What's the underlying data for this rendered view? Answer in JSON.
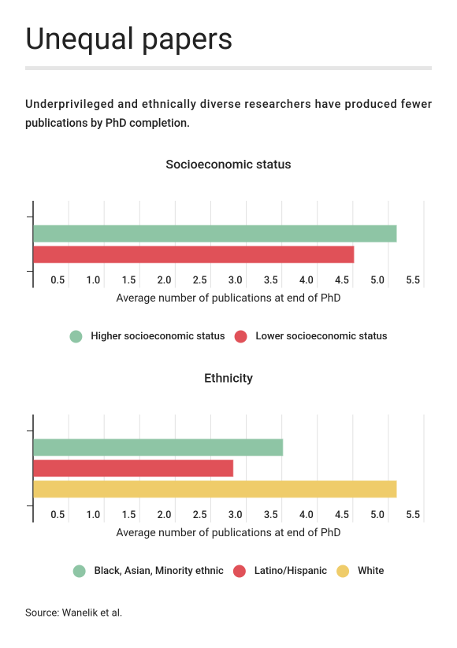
{
  "title": "Unequal papers",
  "description": [
    "Underprivileged and ethnically diverse researchers have produced fewer",
    "publications by PhD completion."
  ],
  "source": "Source: Wanelik et al.",
  "chart_data": [
    {
      "type": "bar",
      "title": "Socioeconomic status",
      "x_label": "Average number of publications at end of PhD",
      "xlim": [
        0,
        5.5
      ],
      "xticks": [
        0.5,
        {
          "value": 1,
          "label": "1.0"
        },
        1.5,
        {
          "value": 2,
          "label": "2.0"
        },
        2.5,
        {
          "value": 3,
          "label": "3.0"
        },
        3.5,
        {
          "value": 4,
          "label": "4.0"
        },
        4.5,
        {
          "value": 5,
          "label": "5.0"
        },
        5.5
      ],
      "grid": true,
      "series": [
        {
          "name": "Higher socioeconomic status",
          "color": "#8ec5a5",
          "values": [
            5.1
          ]
        },
        {
          "name": "Lower socioeconomic status",
          "color": "#e05158",
          "values": [
            4.5
          ]
        }
      ]
    },
    {
      "type": "bar",
      "title": "Ethnicity",
      "x_label": "Average number of publications at end of PhD",
      "xlim": [
        0,
        5.5
      ],
      "xticks": [
        0.5,
        {
          "value": 1,
          "label": "1.0"
        },
        1.5,
        {
          "value": 2,
          "label": "2.0"
        },
        2.5,
        {
          "value": 3,
          "label": "3.0"
        },
        3.5,
        {
          "value": 4,
          "label": "4.0"
        },
        4.5,
        {
          "value": 5,
          "label": "5.0"
        },
        5.5
      ],
      "grid": true,
      "series": [
        {
          "name": "Black, Asian, Minority ethnic",
          "color": "#8ec5a5",
          "values": [
            3.5
          ]
        },
        {
          "name": "Latino/Hispanic",
          "color": "#e05158",
          "values": [
            2.8
          ]
        },
        {
          "name": "White",
          "color": "#efcc6a",
          "values": [
            5.1
          ]
        }
      ]
    }
  ]
}
